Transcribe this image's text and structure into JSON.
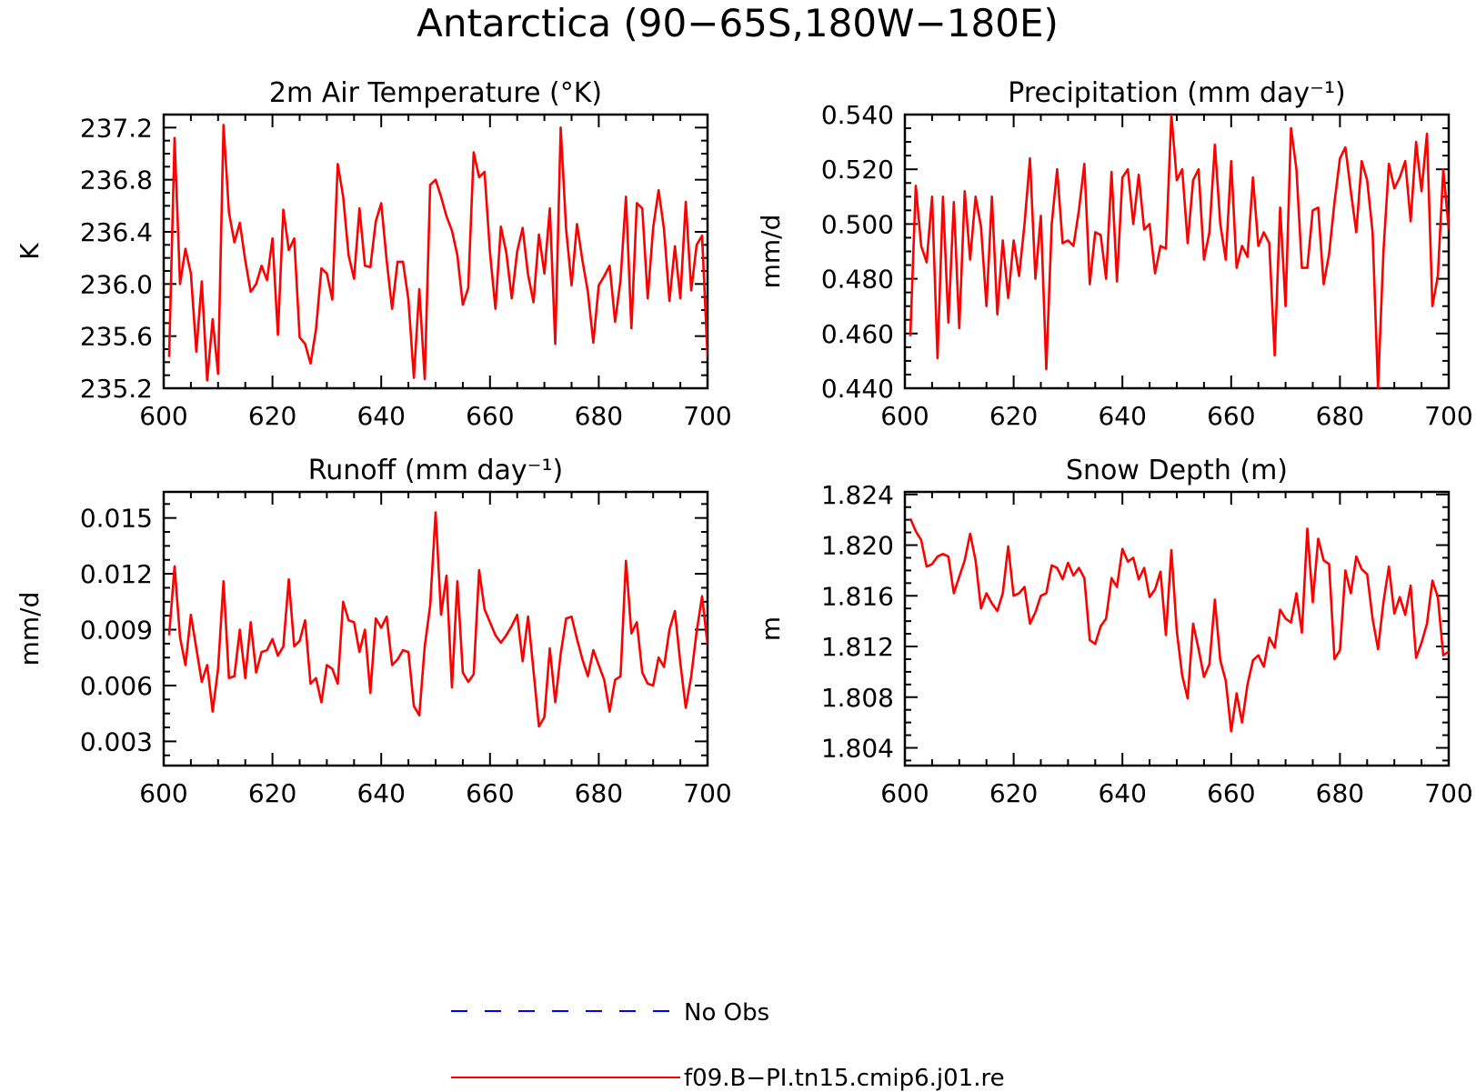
{
  "title": "Antarctica (90−65S,180W−180E)",
  "legend": [
    {
      "label": "No Obs",
      "color": "#0000ff",
      "dash": true
    },
    {
      "label": "f09.B−PI.tn15.cmip6.j01.re",
      "color": "#ff0000",
      "dash": false
    }
  ],
  "chart_data": [
    {
      "type": "line",
      "title": "2m Air Temperature (°K)",
      "ylabel": "K",
      "xlim": [
        600,
        700
      ],
      "ylim": [
        235.2,
        237.3
      ],
      "xticks": [
        600,
        620,
        640,
        660,
        680,
        700
      ],
      "yticks": [
        235.2,
        235.6,
        236.0,
        236.4,
        236.8,
        237.2
      ],
      "ytick_labels": [
        "235.2",
        "235.6",
        "236.0",
        "236.4",
        "236.8",
        "237.2"
      ],
      "x_start": 601,
      "series": [
        {
          "name": "f09.B−PI.tn15.cmip6.j01.re",
          "color": "#ff0000",
          "values": [
            235.44,
            237.12,
            236.0,
            236.27,
            236.08,
            235.48,
            236.02,
            235.26,
            235.73,
            235.31,
            237.22,
            236.55,
            236.32,
            236.47,
            236.18,
            235.94,
            236.0,
            236.14,
            236.03,
            236.35,
            235.61,
            236.57,
            236.26,
            236.35,
            235.59,
            235.54,
            235.39,
            235.65,
            236.12,
            236.08,
            235.88,
            236.92,
            236.67,
            236.22,
            236.04,
            236.58,
            236.14,
            236.13,
            236.48,
            236.62,
            236.18,
            235.81,
            236.17,
            236.17,
            235.88,
            235.28,
            235.96,
            235.27,
            236.76,
            236.8,
            236.67,
            236.52,
            236.41,
            236.22,
            235.84,
            235.97,
            237.01,
            236.82,
            236.86,
            236.24,
            235.81,
            236.44,
            236.24,
            235.89,
            236.25,
            236.43,
            236.07,
            235.86,
            236.38,
            236.08,
            236.58,
            235.54,
            237.2,
            236.42,
            235.99,
            236.46,
            236.18,
            235.94,
            235.55,
            235.99,
            236.06,
            236.14,
            235.71,
            236.03,
            236.67,
            235.66,
            236.62,
            236.58,
            235.89,
            236.43,
            236.72,
            236.42,
            235.87,
            236.29,
            235.89,
            236.63,
            235.95,
            236.3,
            236.37,
            235.44
          ]
        }
      ]
    },
    {
      "type": "line",
      "title": "Precipitation (mm day⁻¹)",
      "ylabel": "mm/d",
      "xlim": [
        600,
        700
      ],
      "ylim": [
        0.44,
        0.54
      ],
      "xticks": [
        600,
        620,
        640,
        660,
        680,
        700
      ],
      "yticks": [
        0.44,
        0.46,
        0.48,
        0.5,
        0.52,
        0.54
      ],
      "ytick_labels": [
        "0.440",
        "0.460",
        "0.480",
        "0.500",
        "0.520",
        "0.540"
      ],
      "x_start": 601,
      "series": [
        {
          "name": "f09.B−PI.tn15.cmip6.j01.re",
          "color": "#ff0000",
          "values": [
            0.459,
            0.514,
            0.492,
            0.486,
            0.51,
            0.451,
            0.51,
            0.464,
            0.508,
            0.462,
            0.512,
            0.487,
            0.51,
            0.499,
            0.47,
            0.51,
            0.467,
            0.494,
            0.473,
            0.494,
            0.481,
            0.5,
            0.524,
            0.48,
            0.503,
            0.447,
            0.5,
            0.52,
            0.493,
            0.494,
            0.492,
            0.505,
            0.522,
            0.478,
            0.497,
            0.496,
            0.48,
            0.519,
            0.479,
            0.517,
            0.52,
            0.5,
            0.518,
            0.498,
            0.5,
            0.482,
            0.492,
            0.491,
            0.54,
            0.516,
            0.52,
            0.493,
            0.516,
            0.52,
            0.487,
            0.497,
            0.529,
            0.5,
            0.487,
            0.523,
            0.484,
            0.492,
            0.488,
            0.517,
            0.492,
            0.497,
            0.493,
            0.452,
            0.506,
            0.47,
            0.535,
            0.52,
            0.484,
            0.484,
            0.505,
            0.506,
            0.478,
            0.489,
            0.508,
            0.524,
            0.528,
            0.512,
            0.497,
            0.523,
            0.516,
            0.497,
            0.44,
            0.49,
            0.522,
            0.513,
            0.517,
            0.523,
            0.501,
            0.53,
            0.512,
            0.533,
            0.47,
            0.481,
            0.52,
            0.498
          ]
        }
      ]
    },
    {
      "type": "line",
      "title": "Runoff (mm day⁻¹)",
      "ylabel": "mm/d",
      "xlim": [
        600,
        700
      ],
      "ylim": [
        0.0017,
        0.0164
      ],
      "xticks": [
        600,
        620,
        640,
        660,
        680,
        700
      ],
      "yticks": [
        0.003,
        0.006,
        0.009,
        0.012,
        0.015
      ],
      "ytick_labels": [
        "0.003",
        "0.006",
        "0.009",
        "0.012",
        "0.015"
      ],
      "x_start": 601,
      "series": [
        {
          "name": "f09.B−PI.tn15.cmip6.j01.re",
          "color": "#ff0000",
          "values": [
            0.0087,
            0.0124,
            0.0086,
            0.0071,
            0.0098,
            0.008,
            0.0062,
            0.0071,
            0.0046,
            0.0069,
            0.0116,
            0.0064,
            0.0065,
            0.009,
            0.0064,
            0.0094,
            0.0067,
            0.0078,
            0.0079,
            0.0085,
            0.0076,
            0.0081,
            0.0117,
            0.0081,
            0.0084,
            0.0095,
            0.0061,
            0.0064,
            0.0051,
            0.0071,
            0.0069,
            0.0061,
            0.0105,
            0.0095,
            0.0094,
            0.0078,
            0.009,
            0.0056,
            0.0096,
            0.0091,
            0.0097,
            0.0071,
            0.0074,
            0.0079,
            0.0078,
            0.0049,
            0.0044,
            0.0081,
            0.0103,
            0.0153,
            0.0098,
            0.0119,
            0.0059,
            0.0116,
            0.0067,
            0.0062,
            0.0066,
            0.0122,
            0.0101,
            0.0094,
            0.0087,
            0.0083,
            0.0087,
            0.0092,
            0.0098,
            0.0073,
            0.0097,
            0.0068,
            0.0038,
            0.0043,
            0.008,
            0.0051,
            0.0077,
            0.0096,
            0.0097,
            0.0085,
            0.0074,
            0.0065,
            0.0079,
            0.0071,
            0.0063,
            0.0046,
            0.0063,
            0.0065,
            0.0127,
            0.0088,
            0.0094,
            0.0067,
            0.0061,
            0.006,
            0.0075,
            0.007,
            0.009,
            0.01,
            0.0072,
            0.0048,
            0.0065,
            0.0089,
            0.0108,
            0.0082
          ]
        }
      ]
    },
    {
      "type": "line",
      "title": "Snow Depth (m)",
      "ylabel": "m",
      "xlim": [
        600,
        700
      ],
      "ylim": [
        1.8026,
        1.8242
      ],
      "xticks": [
        600,
        620,
        640,
        660,
        680,
        700
      ],
      "yticks": [
        1.804,
        1.808,
        1.812,
        1.816,
        1.82,
        1.824
      ],
      "ytick_labels": [
        "1.804",
        "1.808",
        "1.812",
        "1.816",
        "1.820",
        "1.824"
      ],
      "x_start": 601,
      "series": [
        {
          "name": "f09.B−PI.tn15.cmip6.j01.re",
          "color": "#ff0000",
          "values": [
            1.8221,
            1.8211,
            1.8204,
            1.8183,
            1.8185,
            1.8191,
            1.8193,
            1.8191,
            1.8162,
            1.8175,
            1.8188,
            1.8209,
            1.8188,
            1.815,
            1.8162,
            1.8154,
            1.8148,
            1.8162,
            1.8199,
            1.816,
            1.8162,
            1.8167,
            1.8138,
            1.8147,
            1.816,
            1.8162,
            1.8184,
            1.8182,
            1.8173,
            1.8186,
            1.8176,
            1.8182,
            1.8174,
            1.8125,
            1.8122,
            1.8136,
            1.8142,
            1.8174,
            1.8167,
            1.8197,
            1.8187,
            1.819,
            1.8173,
            1.8182,
            1.8159,
            1.8165,
            1.8179,
            1.8129,
            1.8196,
            1.8132,
            1.8097,
            1.8079,
            1.8138,
            1.8118,
            1.8096,
            1.8106,
            1.8157,
            1.8109,
            1.8093,
            1.8053,
            1.8083,
            1.806,
            1.809,
            1.8109,
            1.8113,
            1.8104,
            1.8127,
            1.8119,
            1.8149,
            1.8142,
            1.8139,
            1.8162,
            1.8131,
            1.8213,
            1.8155,
            1.8205,
            1.8188,
            1.8185,
            1.811,
            1.8117,
            1.818,
            1.8162,
            1.8191,
            1.8181,
            1.8177,
            1.8142,
            1.8118,
            1.8155,
            1.8183,
            1.8146,
            1.8159,
            1.8145,
            1.8168,
            1.8111,
            1.8123,
            1.8138,
            1.8172,
            1.8159,
            1.8113,
            1.8116
          ]
        }
      ]
    }
  ]
}
